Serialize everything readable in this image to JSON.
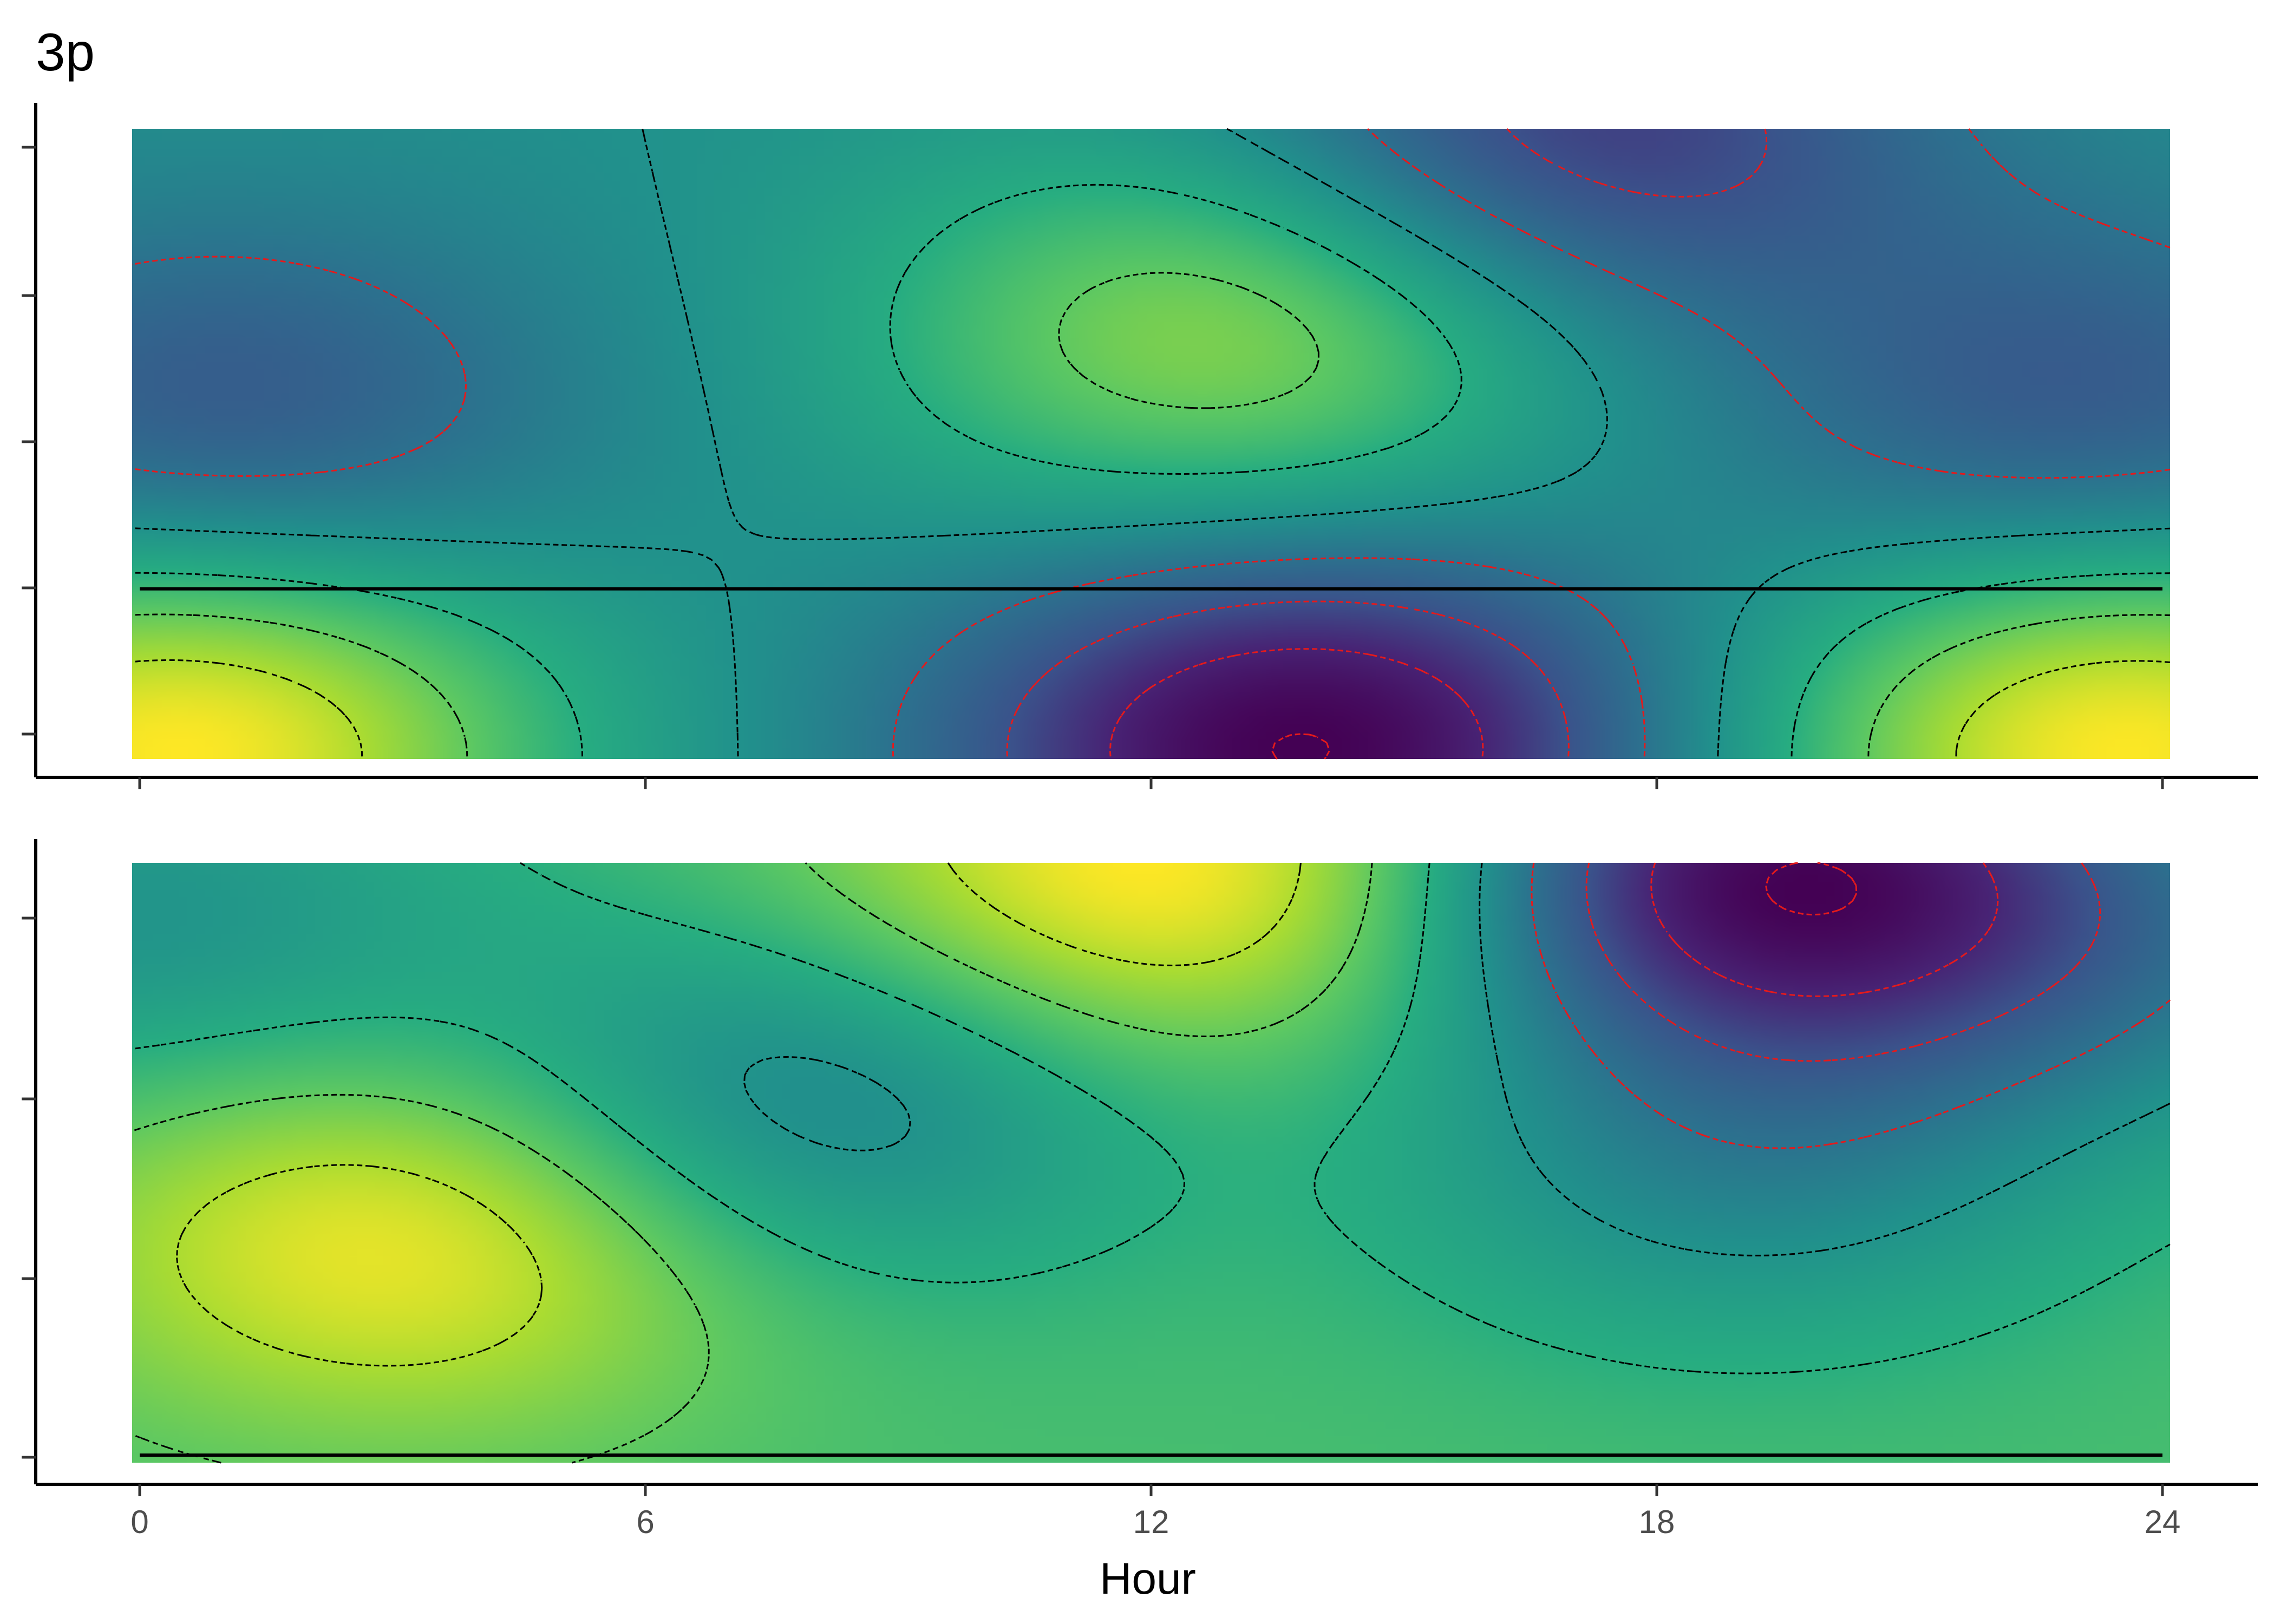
{
  "figure": {
    "tag": "3p"
  },
  "chart_data": {
    "type": "heatmap",
    "xlabel": "Hour",
    "xlim": [
      0,
      24
    ],
    "x_ticks": [
      0,
      6,
      12,
      18,
      24
    ],
    "x_tick_labels": [
      "0",
      "6",
      "12",
      "18",
      "24"
    ],
    "colormap": "viridis",
    "colors": {
      "low": "#440154",
      "high": "#fde725",
      "positive_contour": "#000000",
      "negative_contour": "#e41a1c"
    },
    "legend": "none",
    "panels": [
      {
        "position": "top",
        "ylabel": "",
        "y_tick_count": 5,
        "hotspots": [
          {
            "x": 0.5,
            "y": 0.02,
            "value": 1.0
          },
          {
            "x": 23.5,
            "y": 0.02,
            "value": 1.0
          },
          {
            "x": 13.0,
            "y": 0.68,
            "value": 0.68
          },
          {
            "x": 13.8,
            "y": 0.02,
            "value": -1.0
          },
          {
            "x": 17.0,
            "y": 0.99,
            "value": -0.65
          },
          {
            "x": 1.0,
            "y": 0.55,
            "value": -0.45
          },
          {
            "x": 23.0,
            "y": 0.55,
            "value": -0.45
          }
        ],
        "zero_contour_horizontal_y": 0.27
      },
      {
        "position": "bottom",
        "ylabel": "",
        "y_tick_count": 4,
        "hotspots": [
          {
            "x": 3.3,
            "y": 0.38,
            "value": 0.48
          },
          {
            "x": 12.3,
            "y": 0.99,
            "value": 0.55
          },
          {
            "x": 7.8,
            "y": 0.6,
            "value": -0.45
          },
          {
            "x": 19.2,
            "y": 0.99,
            "value": -1.0
          },
          {
            "x": 0.0,
            "y": 0.9,
            "value": -0.3
          },
          {
            "x": 24.0,
            "y": 0.85,
            "value": -0.3
          },
          {
            "x": 19.0,
            "y": 0.5,
            "value": -0.35
          }
        ],
        "base_value": 0.3,
        "zero_contour_baseline_y": 0.0
      }
    ]
  }
}
